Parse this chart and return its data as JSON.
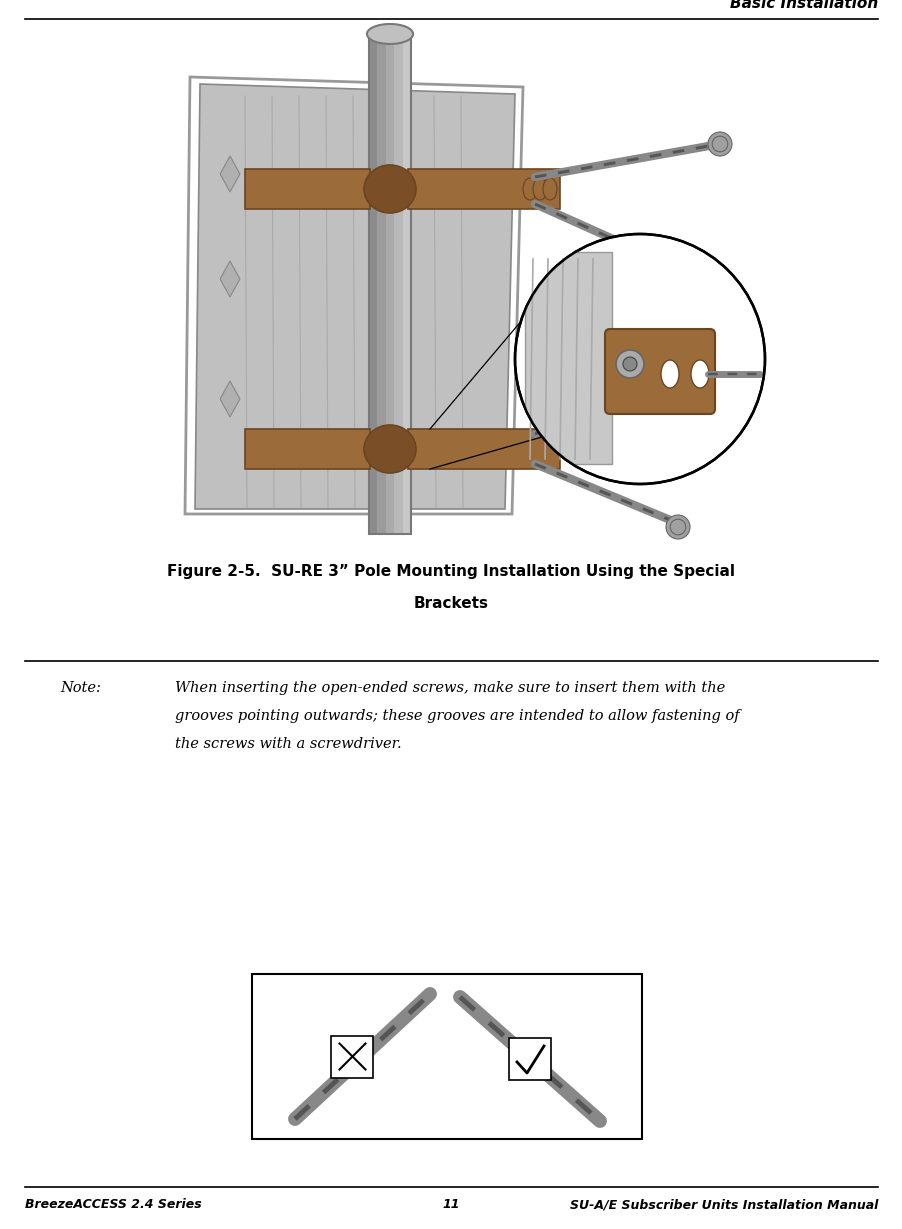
{
  "header_text": "Basic Installation",
  "footer_left": "BreezeACCESS 2.4 Series",
  "footer_center": "11",
  "footer_right": "SU-A/E Subscriber Units Installation Manual",
  "figure_caption_line1": "Figure 2-5.  SU-RE 3” Pole Mounting Installation Using the Special",
  "figure_caption_line2": "Brackets",
  "note_label": "Note:",
  "note_text_line1": "When inserting the open-ended screws, make sure to insert them with the",
  "note_text_line2": "grooves pointing outwards; these grooves are intended to allow fastening of",
  "note_text_line3": "the screws with a screwdriver.",
  "bg_color": "#ffffff",
  "text_color": "#000000",
  "bracket_color": "#9B6B3A",
  "pole_color": "#b8b8b8",
  "panel_color": "#c8c8c8",
  "screw_color": "#888888"
}
